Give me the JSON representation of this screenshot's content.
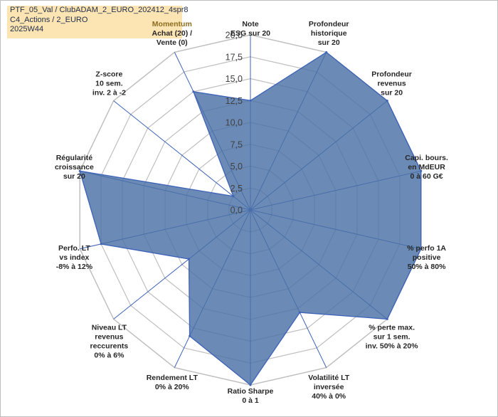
{
  "title_lines": [
    "PTF_05_Val / ClubADAM_2_EURO_202412_4spr8",
    "C4_Actions / 2_EURO",
    "2025W44"
  ],
  "chart_data": {
    "type": "radar",
    "rmin": 0,
    "rmax": 20,
    "tick_labels": [
      "0,0",
      "2,5",
      "5,0",
      "7,5",
      "10,0",
      "12,5",
      "15,0",
      "17,5",
      "20,0"
    ],
    "grid": true,
    "colors": {
      "fill": "#4a72a6",
      "line": "#3d62b8",
      "grid": "#bfbfbf",
      "highlight_label": "#8c6d1f"
    },
    "axes": [
      {
        "lines": [
          "Note",
          "ESG sur 20"
        ],
        "value": 12.5
      },
      {
        "lines": [
          "Profondeur",
          "historique",
          "sur 20"
        ],
        "value": 20
      },
      {
        "lines": [
          "Profondeur",
          "revenus",
          "sur 20"
        ],
        "value": 20
      },
      {
        "lines": [
          "Capi. bours.",
          "en MdEUR",
          "0 à 60 G€"
        ],
        "value": 20
      },
      {
        "lines": [
          "% perfo 1A",
          "positive",
          "50% à 80%"
        ],
        "value": 20
      },
      {
        "lines": [
          "% perte max.",
          "sur 1 sem.",
          "inv. 50% à 20%"
        ],
        "value": 20
      },
      {
        "lines": [
          "Volatilité LT",
          "inversée",
          "40% à 0%"
        ],
        "value": 13
      },
      {
        "lines": [
          "Ratio Sharpe",
          "0 à 1"
        ],
        "value": 20
      },
      {
        "lines": [
          "Rendement LT",
          "0% à 20%"
        ],
        "value": 16
      },
      {
        "lines": [
          "Niveau LT",
          "revenus",
          "reccurents",
          "0% à 6%"
        ],
        "value": 9
      },
      {
        "lines": [
          "Perfo. LT",
          "vs index",
          "-8% à 12%"
        ],
        "value": 17.5
      },
      {
        "lines": [
          "Régularité",
          "croissance",
          "sur 20"
        ],
        "value": 20
      },
      {
        "lines": [
          "Z-score",
          "10 sem.",
          "inv. 2 à -2"
        ],
        "value": 2.5
      },
      {
        "lines": [
          "Momentum",
          "Achat (20) /",
          "Vente (0)"
        ],
        "value": 15,
        "first_line_highlight": true
      }
    ]
  }
}
